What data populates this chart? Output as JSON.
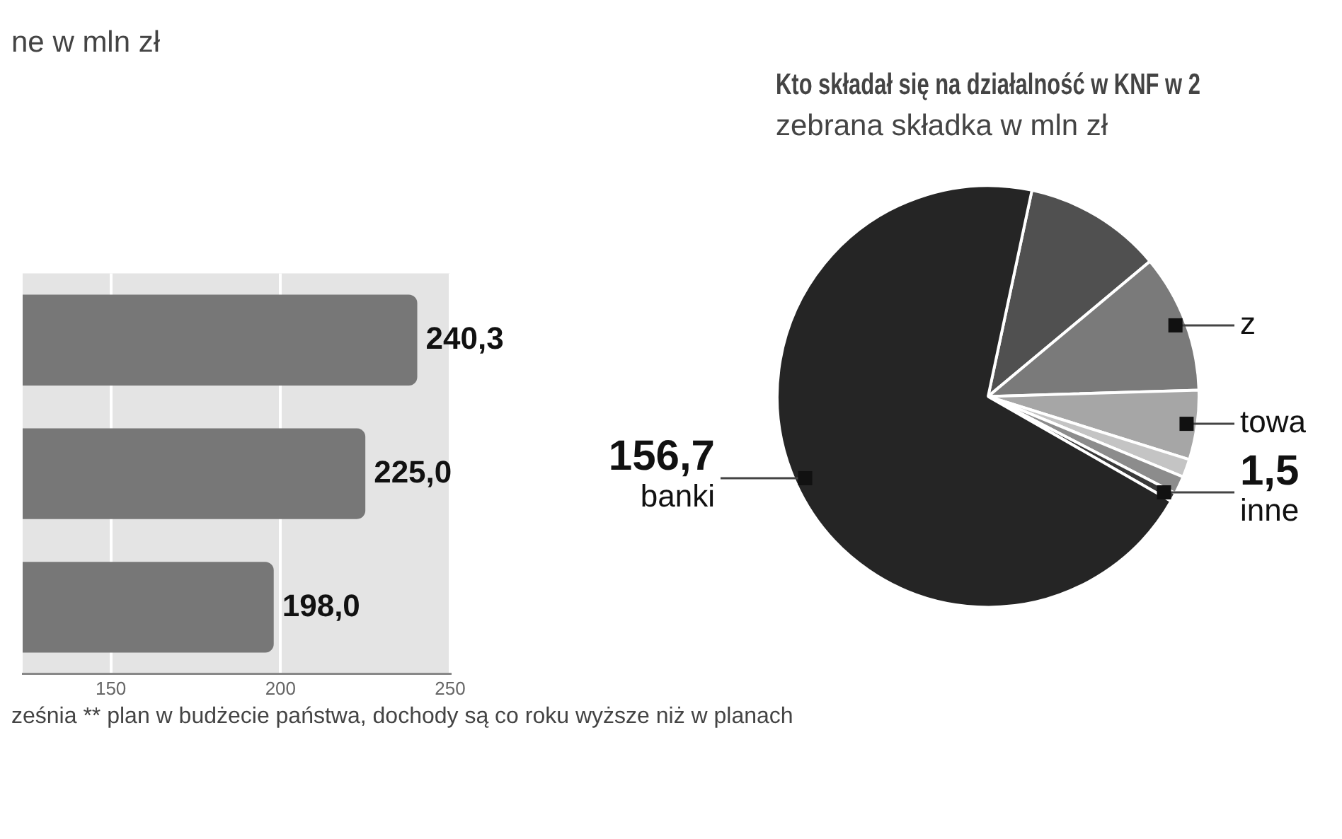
{
  "chart_data": [
    {
      "type": "bar",
      "orientation": "horizontal",
      "title": "ne w mln zł",
      "categories": [
        null,
        null,
        null
      ],
      "values": [
        240.3,
        225.0,
        198.0
      ],
      "color": "#777777",
      "value_labels": [
        "240,3",
        "225,0",
        "198,0"
      ],
      "xlim": [
        124,
        250
      ],
      "xticks": [
        150,
        200,
        250
      ],
      "grid": "x",
      "annotations": [
        "ześnia ** plan w budżecie państwa, dochody są co roku wyższe niż w planach"
      ]
    },
    {
      "type": "pie",
      "title": "Kto składał się na działalność w KNF w 2",
      "subtitle": "zebrana składka w mln zł",
      "categories": [
        null,
        "z",
        "towa",
        null,
        null,
        "inne",
        "banki"
      ],
      "values": [
        23.7,
        23.7,
        11.9,
        3.1,
        3.1,
        1.5,
        156.7
      ],
      "colors": [
        "#505050",
        "#7a7a7a",
        "#a6a6a6",
        "#c4c4c4",
        "#8c8c8c",
        "#3a3a3a",
        "#252525"
      ],
      "value_labels": [
        null,
        null,
        null,
        null,
        null,
        "1,5",
        "156,7"
      ]
    }
  ]
}
